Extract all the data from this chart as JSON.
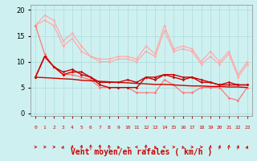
{
  "background_color": "#cff0f0",
  "grid_color": "#aadddd",
  "xlabel": "Vent moyen/en rafales ( km/h )",
  "xlabel_color": "#cc0000",
  "xlabel_fontsize": 7,
  "ylabel_ticks": [
    0,
    5,
    10,
    15,
    20
  ],
  "xlim": [
    -0.5,
    23.5
  ],
  "ylim": [
    -0.5,
    21
  ],
  "x": [
    0,
    1,
    2,
    3,
    4,
    5,
    6,
    7,
    8,
    9,
    10,
    11,
    12,
    13,
    14,
    15,
    16,
    17,
    18,
    19,
    20,
    21,
    22,
    23
  ],
  "series": [
    {
      "y": [
        17,
        19,
        18,
        14,
        15.5,
        13,
        11,
        10.5,
        10.5,
        11,
        11,
        10.5,
        13,
        11.5,
        17,
        12.5,
        13,
        12.5,
        10,
        12,
        10,
        12,
        7.5,
        10
      ],
      "color": "#ffaaaa",
      "lw": 0.9,
      "marker": "D",
      "ms": 1.8
    },
    {
      "y": [
        17,
        18,
        17,
        13,
        14.5,
        12,
        11,
        10,
        10,
        10.5,
        10.5,
        10,
        12,
        11,
        16,
        12,
        12.5,
        12,
        9.5,
        11,
        9.5,
        11.5,
        7,
        9.5
      ],
      "color": "#ffaaaa",
      "lw": 0.9,
      "marker": "D",
      "ms": 1.8
    },
    {
      "y": [
        17,
        11.5,
        9,
        7.5,
        7.5,
        7,
        6.5,
        5,
        5,
        5,
        5,
        4,
        4,
        4,
        6.5,
        5.5,
        4,
        4,
        5,
        5,
        5,
        3,
        2.5,
        5
      ],
      "color": "#ff7777",
      "lw": 0.9,
      "marker": "D",
      "ms": 1.8
    },
    {
      "y": [
        7,
        11,
        9,
        7.5,
        8,
        8,
        7,
        5.5,
        5,
        5,
        5,
        5,
        7,
        7,
        7.5,
        7,
        6.5,
        7,
        6,
        6,
        5.5,
        5.5,
        5.5,
        5.5
      ],
      "color": "#cc0000",
      "lw": 1.0,
      "marker": "D",
      "ms": 1.8
    },
    {
      "y": [
        7.0,
        6.9,
        6.8,
        6.7,
        6.6,
        6.4,
        6.3,
        6.2,
        6.1,
        6.0,
        5.9,
        5.8,
        5.7,
        5.6,
        5.6,
        5.5,
        5.4,
        5.3,
        5.3,
        5.2,
        5.2,
        5.1,
        5.1,
        5.0
      ],
      "color": "#cc0000",
      "lw": 1.0,
      "marker": null,
      "ms": 0
    },
    {
      "y": [
        7,
        11,
        9,
        8,
        8.5,
        7.5,
        7,
        6,
        6,
        6,
        6.5,
        6,
        7,
        6.5,
        7.5,
        7.5,
        7,
        7,
        6.5,
        6,
        5.5,
        6,
        5.5,
        5.5
      ],
      "color": "#cc0000",
      "lw": 1.0,
      "marker": "D",
      "ms": 1.8
    }
  ],
  "wind_arrow_angles": [
    0,
    0,
    0,
    45,
    60,
    70,
    90,
    90,
    110,
    135,
    160,
    180,
    90,
    135,
    180,
    0,
    135,
    0,
    0,
    60,
    60,
    70,
    60,
    45
  ],
  "tick_labels": [
    "0",
    "1",
    "2",
    "3",
    "4",
    "5",
    "6",
    "7",
    "8",
    "9",
    "10",
    "11",
    "12",
    "13",
    "14",
    "15",
    "16",
    "17",
    "18",
    "19",
    "20",
    "21",
    "22",
    "23"
  ]
}
